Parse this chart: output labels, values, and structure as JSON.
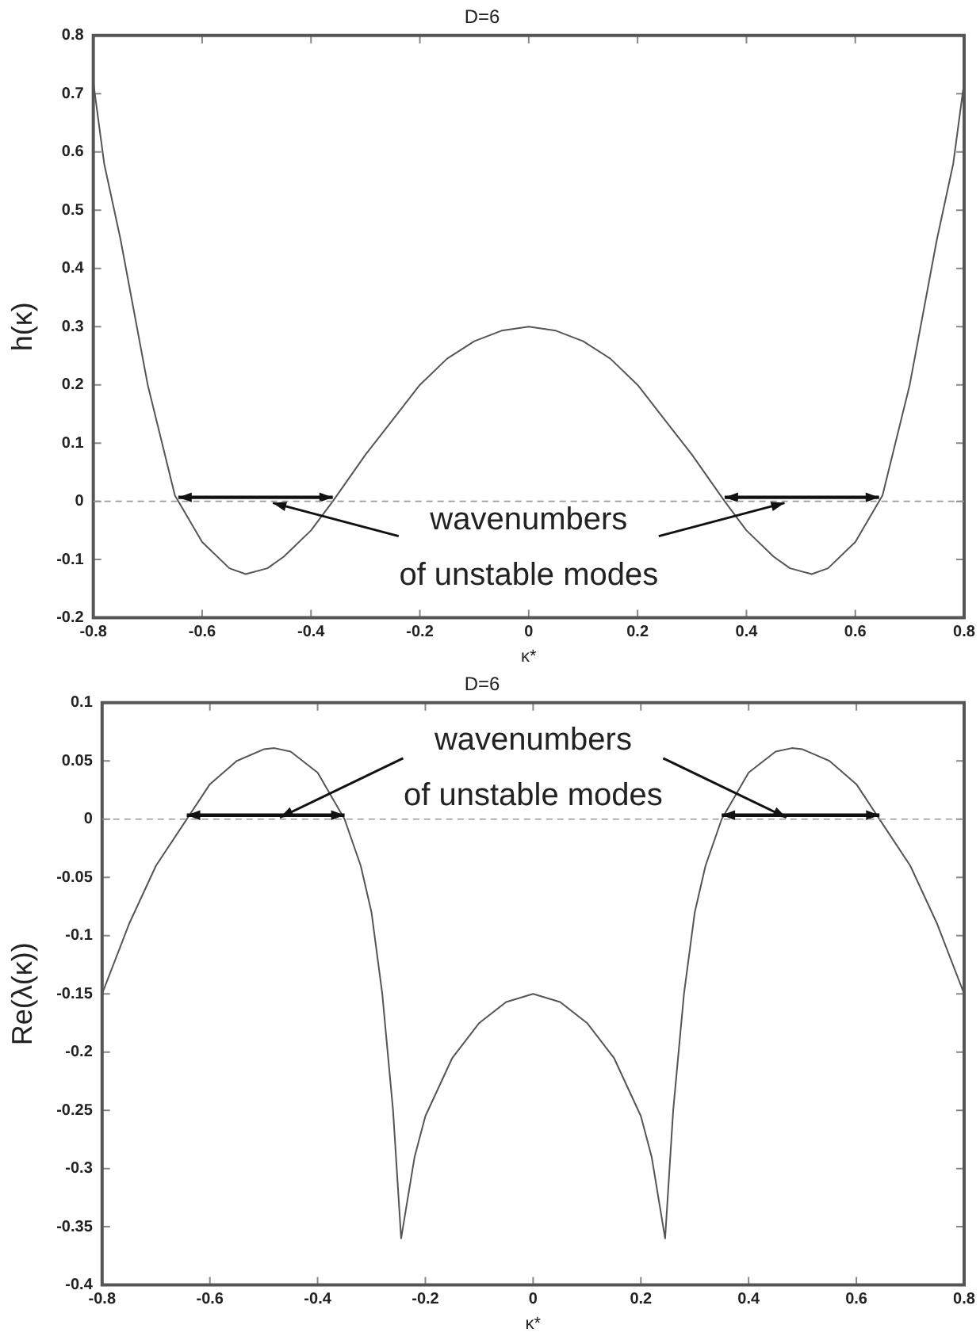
{
  "chart_data": [
    {
      "type": "line",
      "title": "D=6",
      "xlabel": "κ*",
      "ylabel": "h(κ)",
      "x": [
        -0.8,
        -0.78,
        -0.75,
        -0.7,
        -0.65,
        -0.6,
        -0.55,
        -0.52,
        -0.48,
        -0.45,
        -0.4,
        -0.36,
        -0.3,
        -0.25,
        -0.2,
        -0.15,
        -0.1,
        -0.05,
        0,
        0.05,
        0.1,
        0.15,
        0.2,
        0.25,
        0.3,
        0.36,
        0.4,
        0.45,
        0.48,
        0.52,
        0.55,
        0.6,
        0.65,
        0.7,
        0.75,
        0.78,
        0.8
      ],
      "series": [
        {
          "color": "#555555",
          "values": [
            0.72,
            0.58,
            0.45,
            0.2,
            0.01,
            -0.07,
            -0.115,
            -0.125,
            -0.115,
            -0.095,
            -0.05,
            0,
            0.08,
            0.14,
            0.2,
            0.245,
            0.275,
            0.293,
            0.3,
            0.293,
            0.275,
            0.245,
            0.2,
            0.14,
            0.08,
            0,
            -0.05,
            -0.095,
            -0.115,
            -0.125,
            -0.115,
            -0.07,
            0.01,
            0.2,
            0.45,
            0.58,
            0.72
          ]
        }
      ],
      "xlim": [
        -0.8,
        0.8
      ],
      "xticks": [
        -0.8,
        -0.6,
        -0.4,
        -0.2,
        0,
        0.2,
        0.4,
        0.6,
        0.8
      ],
      "ylim": [
        -0.2,
        0.8
      ],
      "yticks": [
        -0.2,
        -0.1,
        0,
        0.1,
        0.2,
        0.3,
        0.4,
        0.5,
        0.6,
        0.7,
        0.8
      ],
      "grid": false,
      "legend": false,
      "line_style": "solid",
      "marker": "none",
      "ref_lines": [
        {
          "axis": "y",
          "value": 0,
          "line_style": "dashed",
          "color": "#999999"
        }
      ],
      "annotations": [
        {
          "text": "wavenumbers of unstable modes",
          "x": -0.47,
          "y": 0
        }
      ]
    },
    {
      "type": "line",
      "title": "D=6",
      "xlabel": "κ*",
      "ylabel": "Re(λ(κ))",
      "x": [
        -0.8,
        -0.75,
        -0.7,
        -0.65,
        -0.6,
        -0.55,
        -0.5,
        -0.48,
        -0.45,
        -0.4,
        -0.35,
        -0.32,
        -0.3,
        -0.28,
        -0.26,
        -0.245,
        -0.22,
        -0.2,
        -0.15,
        -0.1,
        -0.05,
        0,
        0.05,
        0.1,
        0.15,
        0.2,
        0.22,
        0.245,
        0.26,
        0.28,
        0.3,
        0.32,
        0.35,
        0.4,
        0.45,
        0.48,
        0.5,
        0.55,
        0.6,
        0.65,
        0.7,
        0.75,
        0.8
      ],
      "series": [
        {
          "color": "#555555",
          "values": [
            -0.15,
            -0.09,
            -0.04,
            -0.005,
            0.03,
            0.05,
            0.06,
            0.061,
            0.058,
            0.04,
            0,
            -0.04,
            -0.08,
            -0.15,
            -0.25,
            -0.36,
            -0.29,
            -0.255,
            -0.205,
            -0.175,
            -0.157,
            -0.15,
            -0.157,
            -0.175,
            -0.205,
            -0.255,
            -0.29,
            -0.36,
            -0.25,
            -0.15,
            -0.08,
            -0.04,
            0,
            0.04,
            0.058,
            0.061,
            0.06,
            0.05,
            0.03,
            -0.005,
            -0.04,
            -0.09,
            -0.15
          ]
        }
      ],
      "xlim": [
        -0.8,
        0.8
      ],
      "xticks": [
        -0.8,
        -0.6,
        -0.4,
        -0.2,
        0,
        0.2,
        0.4,
        0.6,
        0.8
      ],
      "ylim": [
        -0.4,
        0.1
      ],
      "yticks": [
        -0.4,
        -0.35,
        -0.3,
        -0.25,
        -0.2,
        -0.15,
        -0.1,
        -0.05,
        0,
        0.05,
        0.1
      ],
      "grid": false,
      "legend": false,
      "line_style": "solid",
      "marker": "none",
      "ref_lines": [
        {
          "axis": "y",
          "value": 0,
          "line_style": "dashed",
          "color": "#999999"
        }
      ],
      "annotations": [
        {
          "text": "wavenumbers of unstable modes",
          "x": -0.47,
          "y": 0
        }
      ]
    }
  ]
}
